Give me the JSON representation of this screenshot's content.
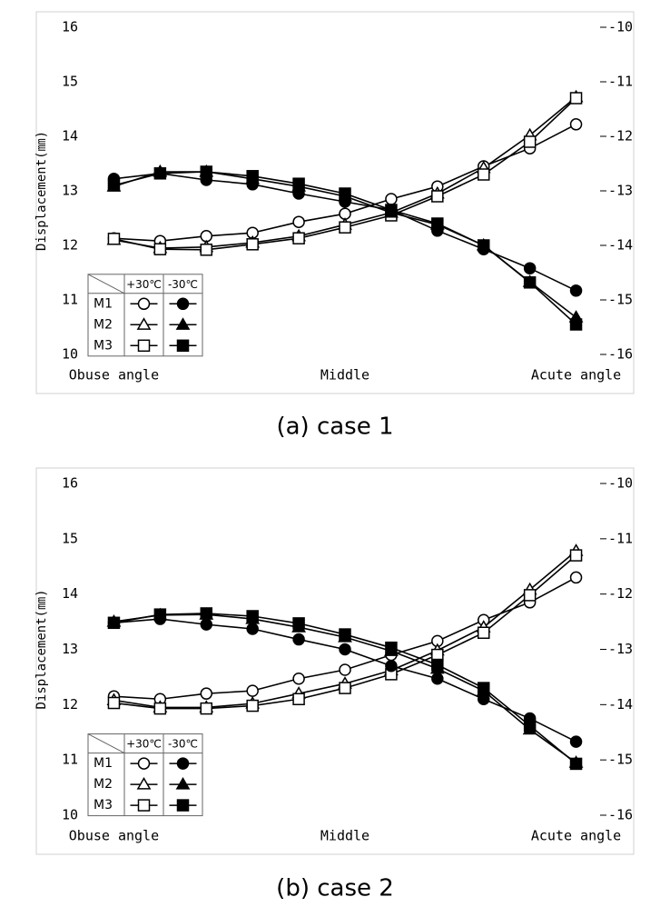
{
  "chart_data": [
    {
      "type": "line",
      "caption": "(a) case 1",
      "ylabel": "Displacement(㎜)",
      "categories": [
        "Obuse angle",
        null,
        null,
        null,
        null,
        "Middle",
        null,
        null,
        null,
        null,
        "Acute angle"
      ],
      "ylim": [
        10,
        16
      ],
      "yticks": [
        10,
        11,
        12,
        13,
        14,
        15,
        16
      ],
      "y2lim": [
        -16,
        -10
      ],
      "y2ticks": [
        -16,
        -15,
        -14,
        -13,
        -12,
        -11,
        -10
      ],
      "series": [
        {
          "name": "M1",
          "temperature": "+30℃",
          "marker": "circle",
          "filled": false,
          "color": "#000000",
          "values": [
            12.13,
            12.08,
            12.17,
            12.23,
            12.43,
            12.58,
            12.85,
            13.08,
            13.45,
            13.78,
            14.22
          ]
        },
        {
          "name": "M2",
          "temperature": "+30℃",
          "marker": "triangle",
          "filled": false,
          "color": "#000000",
          "values": [
            12.1,
            11.95,
            11.97,
            12.05,
            12.17,
            12.38,
            12.6,
            12.95,
            13.42,
            14.02,
            14.72
          ]
        },
        {
          "name": "M3",
          "temperature": "+30℃",
          "marker": "square",
          "filled": false,
          "color": "#000000",
          "values": [
            12.12,
            11.93,
            11.92,
            12.02,
            12.13,
            12.33,
            12.55,
            12.9,
            13.3,
            13.9,
            14.7
          ]
        },
        {
          "name": "M1",
          "temperature": "-30℃",
          "marker": "circle",
          "filled": true,
          "color": "#000000",
          "axis": "y2",
          "values": [
            -12.78,
            -12.68,
            -12.8,
            -12.88,
            -13.05,
            -13.2,
            -13.35,
            -13.73,
            -14.07,
            -14.42,
            -14.83
          ]
        },
        {
          "name": "M2",
          "temperature": "-30℃",
          "marker": "triangle",
          "filled": true,
          "color": "#000000",
          "axis": "y2",
          "values": [
            -12.92,
            -12.65,
            -12.65,
            -12.78,
            -12.92,
            -13.1,
            -13.4,
            -13.62,
            -14.0,
            -14.67,
            -15.32
          ]
        },
        {
          "name": "M3",
          "temperature": "-30℃",
          "marker": "square",
          "filled": true,
          "color": "#000000",
          "axis": "y2",
          "values": [
            -12.9,
            -12.68,
            -12.65,
            -12.73,
            -12.87,
            -13.05,
            -13.35,
            -13.6,
            -14.0,
            -14.68,
            -15.45
          ]
        }
      ]
    },
    {
      "type": "line",
      "caption": "(b) case 2",
      "ylabel": "Displacement(㎜)",
      "categories": [
        "Obuse angle",
        null,
        null,
        null,
        null,
        "Middle",
        null,
        null,
        null,
        null,
        "Acute angle"
      ],
      "ylim": [
        10,
        16
      ],
      "yticks": [
        10,
        11,
        12,
        13,
        14,
        15,
        16
      ],
      "y2lim": [
        -16,
        -10
      ],
      "y2ticks": [
        -16,
        -15,
        -14,
        -13,
        -12,
        -11,
        -10
      ],
      "series": [
        {
          "name": "M1",
          "temperature": "+30℃",
          "marker": "circle",
          "filled": false,
          "color": "#000000",
          "values": [
            12.15,
            12.1,
            12.2,
            12.25,
            12.47,
            12.63,
            12.9,
            13.15,
            13.53,
            13.85,
            14.3
          ]
        },
        {
          "name": "M2",
          "temperature": "+30℃",
          "marker": "triangle",
          "filled": false,
          "color": "#000000",
          "values": [
            12.08,
            11.95,
            11.95,
            12.02,
            12.2,
            12.38,
            12.62,
            12.98,
            13.4,
            14.08,
            14.78
          ]
        },
        {
          "name": "M3",
          "temperature": "+30℃",
          "marker": "square",
          "filled": false,
          "color": "#000000",
          "values": [
            12.03,
            11.93,
            11.93,
            11.98,
            12.1,
            12.3,
            12.55,
            12.9,
            13.3,
            13.98,
            14.7
          ]
        },
        {
          "name": "M1",
          "temperature": "-30℃",
          "marker": "circle",
          "filled": true,
          "color": "#000000",
          "axis": "y2",
          "values": [
            -12.52,
            -12.45,
            -12.55,
            -12.63,
            -12.82,
            -13.0,
            -13.3,
            -13.53,
            -13.9,
            -14.25,
            -14.67
          ]
        },
        {
          "name": "M2",
          "temperature": "-30℃",
          "marker": "triangle",
          "filled": true,
          "color": "#000000",
          "axis": "y2",
          "values": [
            -12.5,
            -12.38,
            -12.37,
            -12.45,
            -12.6,
            -12.78,
            -13.03,
            -13.35,
            -13.75,
            -14.45,
            -15.05
          ]
        },
        {
          "name": "M3",
          "temperature": "-30℃",
          "marker": "square",
          "filled": true,
          "color": "#000000",
          "axis": "y2",
          "values": [
            -12.52,
            -12.37,
            -12.35,
            -12.4,
            -12.53,
            -12.73,
            -12.97,
            -13.28,
            -13.7,
            -14.38,
            -15.07
          ]
        }
      ]
    }
  ]
}
